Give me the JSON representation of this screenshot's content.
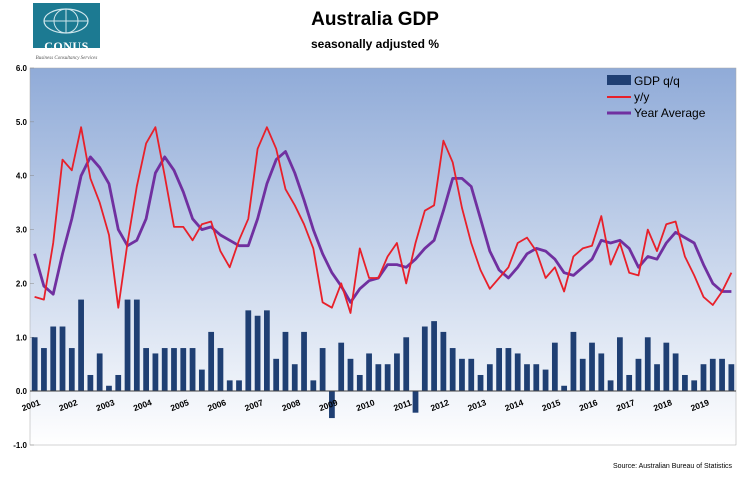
{
  "logo": {
    "name": "CONUS",
    "subtitle": "Business Consultancy Services"
  },
  "chart_data": {
    "type": "bar+line",
    "title": "Australia GDP",
    "subtitle": "seasonally adjusted %",
    "source": "Source: Australian Bureau of Statistics",
    "ylim": [
      -1,
      6
    ],
    "yticks": [
      "-1.0",
      "0.0",
      "1.0",
      "2.0",
      "3.0",
      "4.0",
      "5.0",
      "6.0"
    ],
    "xticks": [
      "2001",
      "2002",
      "2003",
      "2004",
      "2005",
      "2006",
      "2007",
      "2008",
      "2009",
      "2010",
      "2011",
      "2012",
      "2013",
      "2014",
      "2015",
      "2016",
      "2017",
      "2018",
      "2019"
    ],
    "legend_position": "top-right",
    "series": [
      {
        "name": "GDP q/q",
        "type": "bar",
        "color": "#1f3f73",
        "values": [
          1.0,
          0.8,
          1.2,
          1.2,
          0.8,
          1.7,
          0.3,
          0.7,
          0.1,
          0.3,
          1.7,
          1.7,
          0.8,
          0.7,
          0.8,
          0.8,
          0.8,
          0.8,
          0.4,
          1.1,
          0.8,
          0.2,
          0.2,
          1.5,
          1.4,
          1.5,
          0.6,
          1.1,
          0.5,
          1.1,
          0.2,
          0.8,
          -0.5,
          0.9,
          0.6,
          0.3,
          0.7,
          0.5,
          0.5,
          0.7,
          1.0,
          -0.4,
          1.2,
          1.3,
          1.1,
          0.8,
          0.6,
          0.6,
          0.3,
          0.5,
          0.8,
          0.8,
          0.7,
          0.5,
          0.5,
          0.4,
          0.9,
          0.1,
          1.1,
          0.6,
          0.9,
          0.7,
          0.2,
          1.0,
          0.3,
          0.6,
          1.0,
          0.5,
          0.9,
          0.7,
          0.3,
          0.2,
          0.5,
          0.6,
          0.6,
          0.5
        ]
      },
      {
        "name": "y/y",
        "type": "line",
        "color": "#e8202a",
        "values": [
          1.75,
          1.7,
          2.75,
          4.3,
          4.1,
          4.9,
          3.95,
          3.5,
          2.9,
          1.55,
          2.75,
          3.8,
          4.6,
          4.9,
          4.0,
          3.05,
          3.05,
          2.8,
          3.1,
          3.15,
          2.6,
          2.3,
          2.8,
          3.2,
          4.5,
          4.9,
          4.5,
          3.75,
          3.45,
          3.1,
          2.65,
          1.65,
          1.55,
          2.0,
          1.45,
          2.65,
          2.1,
          2.1,
          2.5,
          2.75,
          2.0,
          2.75,
          3.35,
          3.45,
          4.65,
          4.25,
          3.4,
          2.75,
          2.25,
          1.9,
          2.1,
          2.3,
          2.75,
          2.85,
          2.6,
          2.1,
          2.3,
          1.85,
          2.5,
          2.65,
          2.7,
          3.25,
          2.35,
          2.75,
          2.2,
          2.15,
          3.0,
          2.6,
          3.1,
          3.15,
          2.5,
          2.15,
          1.75,
          1.6,
          1.85,
          2.2
        ]
      },
      {
        "name": "Year Average",
        "type": "line",
        "color": "#7030a0",
        "values": [
          2.55,
          1.95,
          1.8,
          2.55,
          3.2,
          4.0,
          4.35,
          4.15,
          3.85,
          3.0,
          2.7,
          2.8,
          3.2,
          4.05,
          4.35,
          4.1,
          3.7,
          3.2,
          3.0,
          3.05,
          2.9,
          2.8,
          2.7,
          2.7,
          3.2,
          3.85,
          4.3,
          4.45,
          4.05,
          3.55,
          3.0,
          2.55,
          2.2,
          1.95,
          1.65,
          1.9,
          2.05,
          2.1,
          2.35,
          2.35,
          2.3,
          2.45,
          2.65,
          2.8,
          3.35,
          3.95,
          3.95,
          3.8,
          3.2,
          2.6,
          2.25,
          2.1,
          2.3,
          2.55,
          2.65,
          2.6,
          2.45,
          2.2,
          2.15,
          2.3,
          2.45,
          2.8,
          2.75,
          2.8,
          2.65,
          2.3,
          2.5,
          2.45,
          2.75,
          2.95,
          2.85,
          2.75,
          2.35,
          2.0,
          1.85,
          1.85
        ]
      }
    ]
  }
}
